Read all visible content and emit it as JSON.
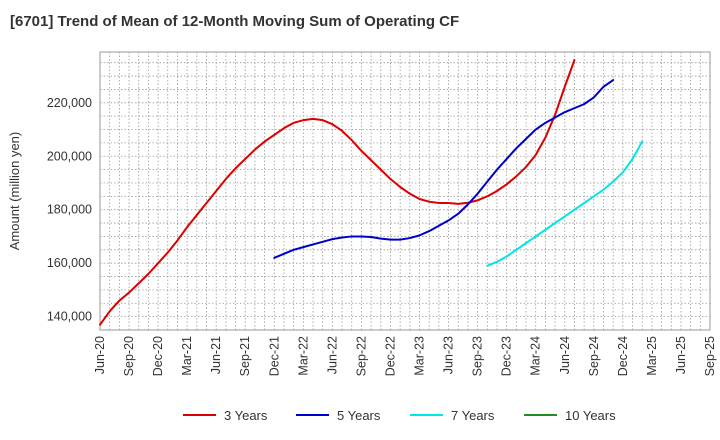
{
  "chart_data": {
    "type": "line",
    "title": "[6701]  Trend of Mean of 12-Month Moving Sum of Operating CF",
    "xlabel": "",
    "ylabel": "Amount (million yen)",
    "ylim": [
      135000,
      239000
    ],
    "y_ticks": [
      140000,
      160000,
      180000,
      200000,
      220000
    ],
    "y_tick_labels": [
      "140,000",
      "160,000",
      "180,000",
      "200,000",
      "220,000"
    ],
    "x_tick_labels": [
      "Jun-20",
      "Sep-20",
      "Dec-20",
      "Mar-21",
      "Jun-21",
      "Sep-21",
      "Dec-21",
      "Mar-22",
      "Jun-22",
      "Sep-22",
      "Dec-22",
      "Mar-23",
      "Jun-23",
      "Sep-23",
      "Dec-23",
      "Mar-24",
      "Jun-24",
      "Sep-24",
      "Dec-24",
      "Mar-25",
      "Jun-25",
      "Sep-25"
    ],
    "grid": true,
    "legend_position": "bottom",
    "series": [
      {
        "name": "3 Years",
        "color": "#dd0000",
        "start_index": 0,
        "values": [
          137000,
          142000,
          146000,
          149000,
          152500,
          156000,
          160000,
          164000,
          168500,
          173500,
          178000,
          182500,
          187000,
          191500,
          195500,
          199000,
          202500,
          205500,
          208000,
          210500,
          212500,
          213500,
          214000,
          213500,
          212000,
          209500,
          206000,
          202000,
          198500,
          195000,
          191500,
          188500,
          186000,
          184000,
          183000,
          182500,
          182500,
          182200,
          182600,
          183500,
          185000,
          187000,
          189500,
          192500,
          196000,
          200500,
          207000,
          215500,
          226000,
          236000
        ]
      },
      {
        "name": "5 Years",
        "color": "#0000cc",
        "start_index": 18,
        "values": [
          162000,
          163500,
          165000,
          166000,
          167000,
          168000,
          169000,
          169600,
          170000,
          170000,
          169800,
          169200,
          168800,
          168800,
          169400,
          170400,
          172000,
          174000,
          176000,
          178500,
          182000,
          186000,
          190500,
          195000,
          199000,
          203000,
          206500,
          210000,
          212500,
          214500,
          216500,
          218000,
          219500,
          222000,
          226000,
          228500
        ]
      },
      {
        "name": "7 Years",
        "color": "#00e5e5",
        "start_index": 40,
        "values": [
          159000,
          160500,
          162500,
          165000,
          167500,
          170000,
          172500,
          175000,
          177500,
          180000,
          182500,
          185000,
          187500,
          190500,
          194000,
          199000,
          205500
        ]
      },
      {
        "name": "10 Years",
        "color": "#228b22",
        "start_index": 0,
        "values": []
      }
    ]
  }
}
